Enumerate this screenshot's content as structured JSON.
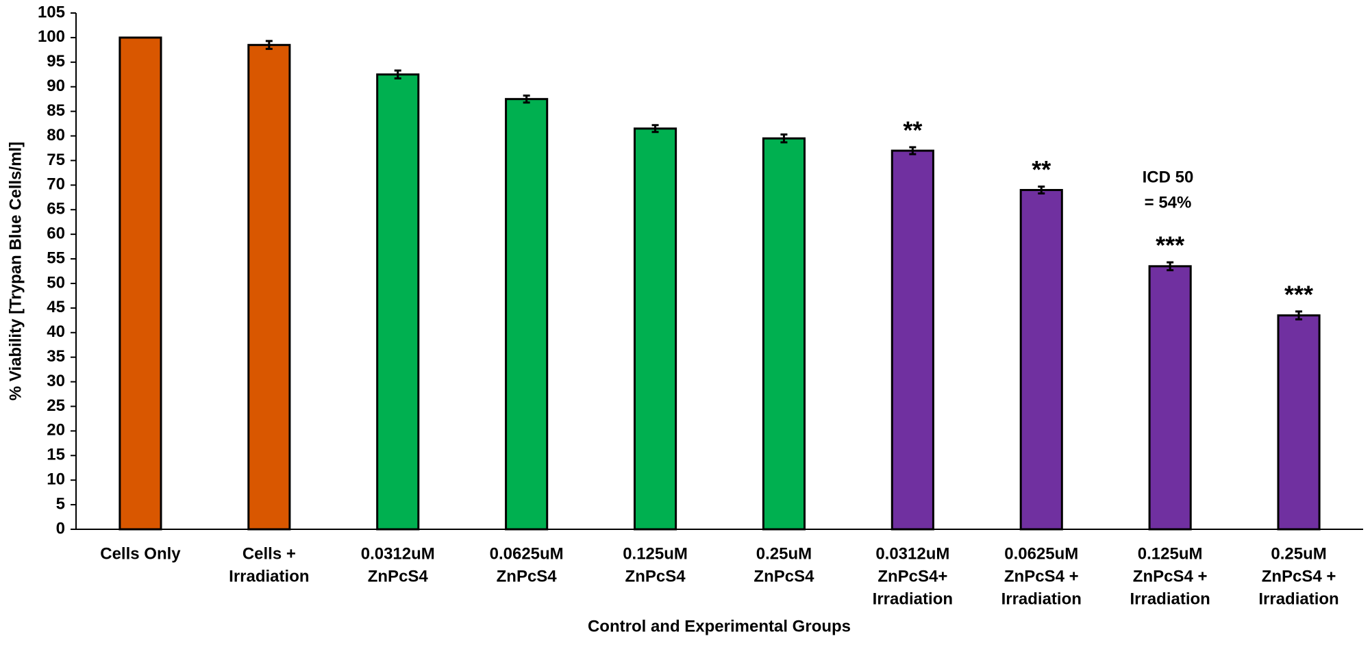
{
  "chart_data": {
    "type": "bar",
    "x_label": "Control and Experimental Groups",
    "y_label": "% Viability [Trypan Blue Cells/ml]",
    "categories": [
      [
        "Cells Only"
      ],
      [
        "Cells +",
        "Irradiation"
      ],
      [
        "0.0312uM",
        "ZnPcS4"
      ],
      [
        "0.0625uM",
        "ZnPcS4"
      ],
      [
        "0.125uM",
        "ZnPcS4"
      ],
      [
        "0.25uM",
        "ZnPcS4"
      ],
      [
        "0.0312uM",
        "ZnPcS4+",
        "Irradiation"
      ],
      [
        "0.0625uM",
        "ZnPcS4 +",
        "Irradiation"
      ],
      [
        "0.125uM",
        "ZnPcS4 +",
        "Irradiation"
      ],
      [
        "0.25uM",
        "ZnPcS4 +",
        "Irradiation"
      ]
    ],
    "values": [
      100,
      98.5,
      92.5,
      87.5,
      81.5,
      79.5,
      77,
      69,
      53.5,
      43.5
    ],
    "errors": [
      0,
      0.8,
      0.8,
      0.7,
      0.7,
      0.8,
      0.7,
      0.7,
      0.8,
      0.8
    ],
    "colors": [
      "#d95700",
      "#d95700",
      "#00b050",
      "#00b050",
      "#00b050",
      "#00b050",
      "#7030a0",
      "#7030a0",
      "#7030a0",
      "#7030a0"
    ],
    "significance": [
      null,
      null,
      null,
      null,
      null,
      null,
      "**",
      "**",
      "***",
      "***"
    ],
    "annotation": [
      "ICD 50",
      "= 54%"
    ],
    "ylim": [
      0,
      105
    ],
    "yticks": [
      0,
      5,
      10,
      15,
      20,
      25,
      30,
      35,
      40,
      45,
      50,
      55,
      60,
      65,
      70,
      75,
      80,
      85,
      90,
      95,
      100,
      105
    ],
    "grid": false
  }
}
